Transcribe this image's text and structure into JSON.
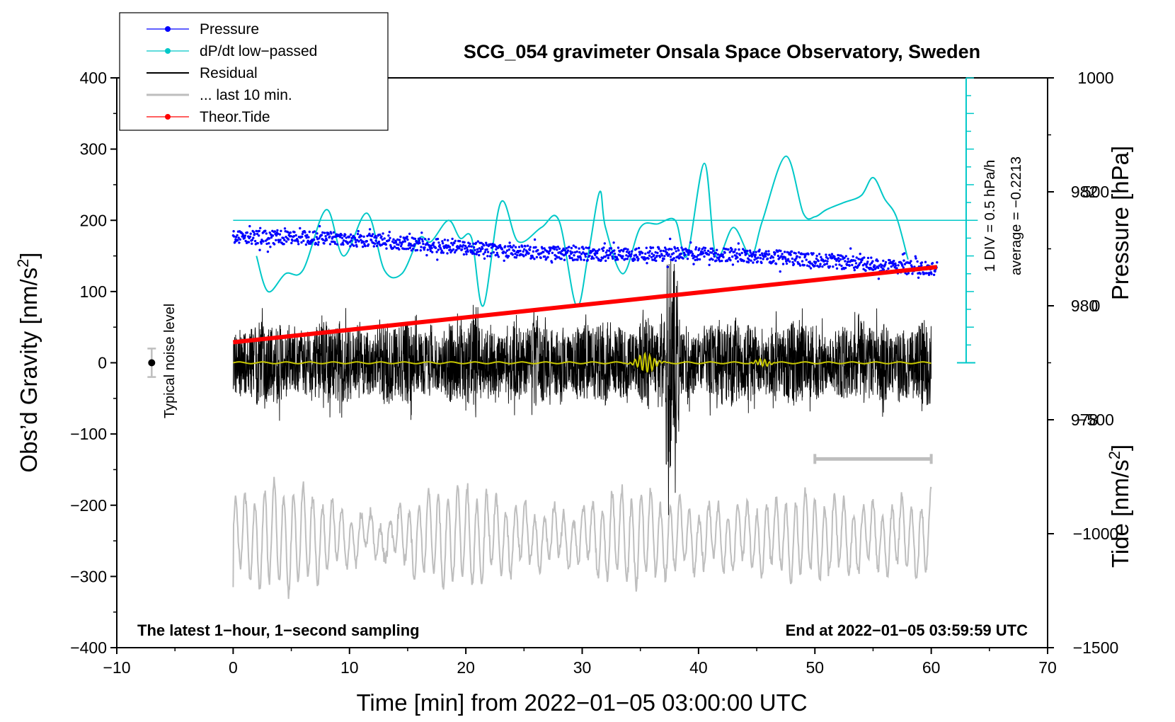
{
  "chart_data": {
    "type": "line",
    "title": "SCG_054 gravimeter Onsala Space Observatory, Sweden",
    "xlabel": "Time [min] from 2022−01−05 03:00:00 UTC",
    "ylabel": "Obs’d Gravity [nm/s²]",
    "ylabel_main": "Obs’d Gravity [nm/s",
    "ylabel_unit_sup": "2",
    "ylabel_unit_close": "]",
    "y2label": "Pressure [hPa]",
    "y3label": "Tide [nm/s²]",
    "y3label_main": "Tide [nm/s",
    "y3label_unit_sup": "2",
    "y3label_unit_close": "]",
    "xlim": [
      -10,
      70
    ],
    "ylim": [
      -400,
      400
    ],
    "x_ticks": [
      "−10",
      "0",
      "10",
      "20",
      "30",
      "40",
      "50",
      "60",
      "70"
    ],
    "y_ticks": [
      "400",
      "300",
      "200",
      "100",
      "0",
      "−100",
      "−200",
      "−300",
      "−400"
    ],
    "pressure_ticks": [
      "982",
      "980",
      "978"
    ],
    "tide_ticks": [
      "1000",
      "500",
      "0",
      "−500",
      "−1000",
      "−1500"
    ],
    "pressure_axis": {
      "range_hpa": [
        974,
        984
      ]
    },
    "tide_axis": {
      "range": [
        -1500,
        1000
      ]
    },
    "legend": [
      {
        "label": "Pressure",
        "color": "#0000ff",
        "marker": "dot"
      },
      {
        "label": "dP/dt low−passed",
        "color": "#00c8c8",
        "marker": "dot"
      },
      {
        "label": "Residual",
        "color": "#000000",
        "marker": "line"
      },
      {
        "label": "... last 10 min.",
        "color": "#bebebe",
        "marker": "line"
      },
      {
        "label": "Theor.Tide",
        "color": "#ff0000",
        "marker": "dot"
      }
    ],
    "legend_position": "top-left",
    "series": [
      {
        "name": "Pressure",
        "axis": "pressure",
        "start_hpa": 981.2,
        "end_hpa": 980.7,
        "scatter_hpa": 0.12
      },
      {
        "name": "dP/dt low−passed",
        "axis": "ddt",
        "x": [
          2,
          3,
          4.5,
          6,
          8,
          9.5,
          11.5,
          13,
          14.5,
          16,
          17,
          18.5,
          19.5,
          20.5,
          21.5,
          23,
          24.5,
          26.5,
          28,
          29.5,
          30.5,
          31.5,
          32,
          33.5,
          35,
          36.5,
          38,
          39,
          40.5,
          41.5,
          43,
          44.5,
          45.5,
          47.5,
          49,
          50,
          51,
          52.5,
          54,
          55,
          56,
          57,
          58
        ],
        "values": [
          150,
          100,
          125,
          130,
          215,
          150,
          210,
          130,
          125,
          175,
          170,
          200,
          175,
          175,
          80,
          225,
          170,
          190,
          200,
          80,
          150,
          240,
          190,
          125,
          190,
          195,
          200,
          150,
          280,
          150,
          190,
          150,
          200,
          290,
          210,
          205,
          215,
          225,
          235,
          260,
          230,
          205,
          145
        ]
      },
      {
        "name": "Residual",
        "x_range": [
          0,
          60
        ],
        "envelope_nm_s2": 40,
        "burst_at_min": 37.7
      },
      {
        "name": "Residual low-passed",
        "color": "#c8c800",
        "x_range": [
          0,
          60
        ]
      },
      {
        "name": "... last 10 min.",
        "x_range": [
          0,
          60
        ],
        "baseline": -245,
        "amplitude": 50
      },
      {
        "name": "Theor.Tide",
        "axis": "tide",
        "x": [
          0,
          60.5
        ],
        "values": [
          -160,
          170
        ]
      }
    ],
    "dpdt_scale_label": "1 DIV = 0.5 hPa/h",
    "dpdt_average_label": "average = −0.2213",
    "dpdt_baseline": 200,
    "noise": {
      "label": "Typical noise level",
      "x": -7,
      "center": 0,
      "half_range": 20
    },
    "last_10_min_bar": {
      "x_start": 50,
      "x_end": 60,
      "y": -135
    },
    "footer_left": "The latest 1−hour, 1−second sampling",
    "footer_right": "End at 2022−01−05 03:59:59 UTC"
  },
  "colors": {
    "pressure": "#0000ff",
    "ddt": "#00c8c8",
    "residual": "#000000",
    "residual_lp": "#c8c800",
    "last10": "#bebebe",
    "tide": "#ff0000"
  }
}
